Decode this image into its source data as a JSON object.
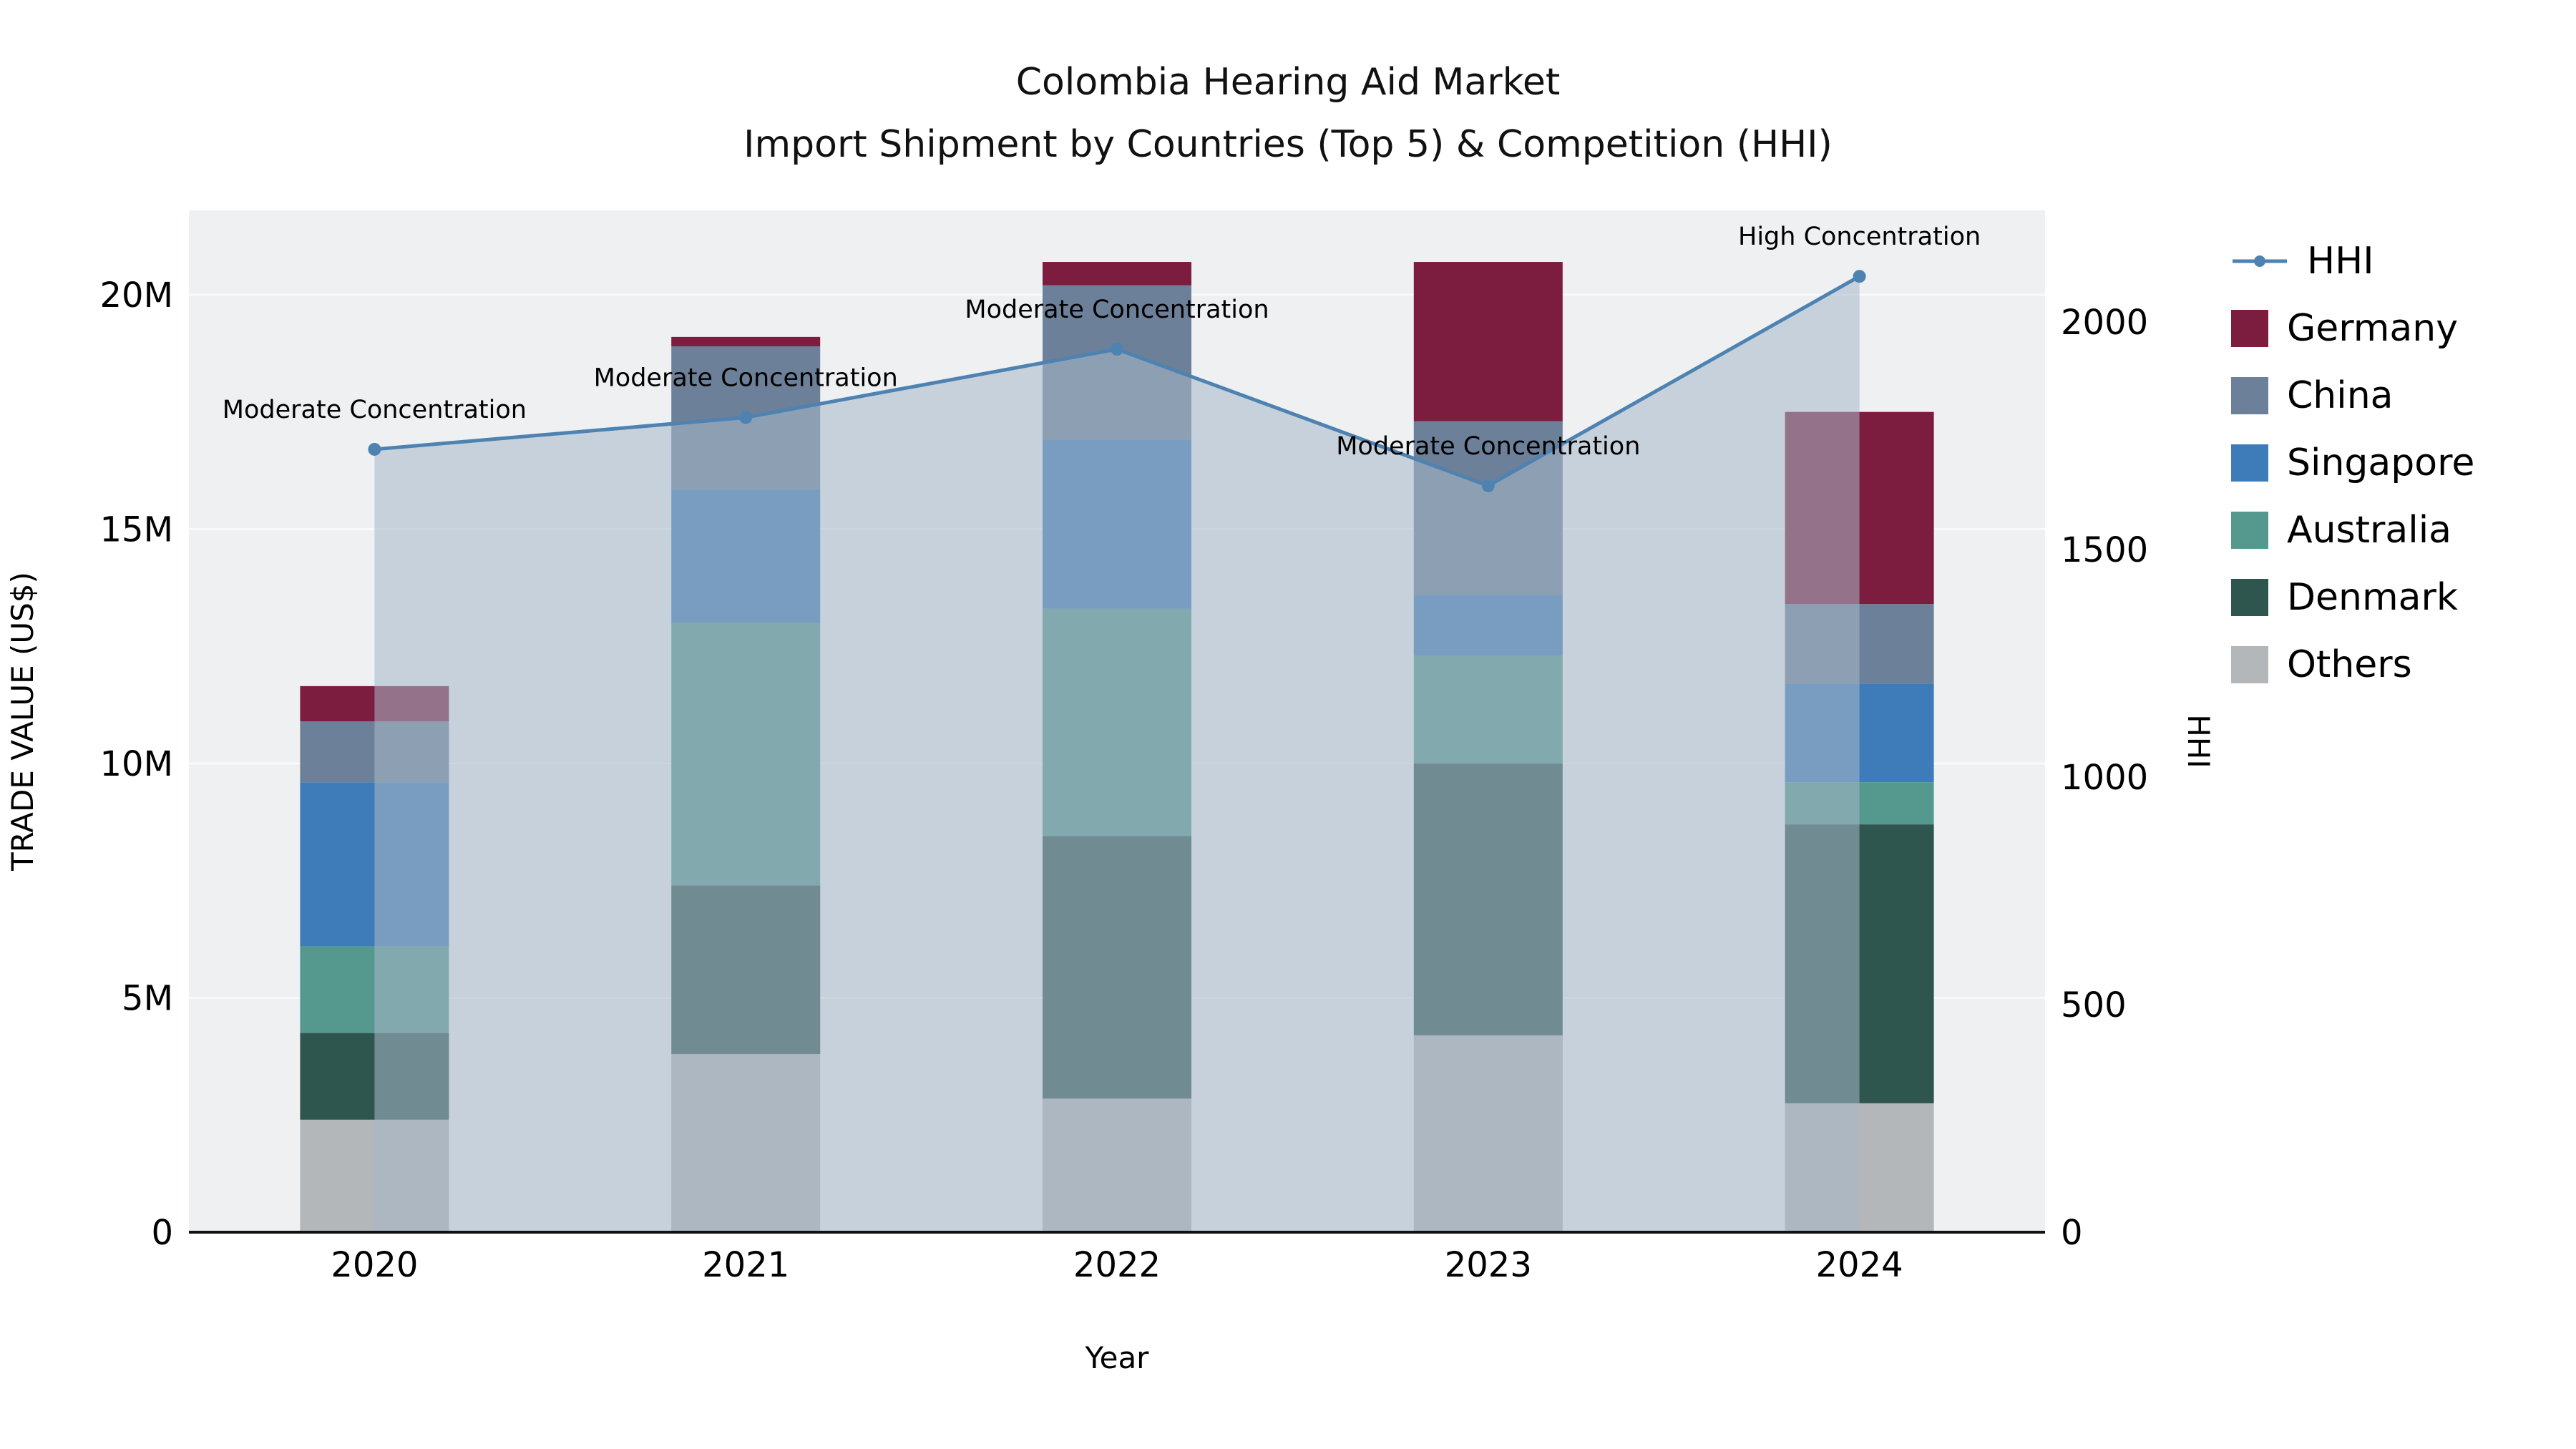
{
  "title_line1": "Colombia Hearing Aid Market",
  "title_line2": "Import Shipment by Countries (Top 5) & Competition (HHI)",
  "chart_data": {
    "type": "bar",
    "subtype": "stacked-bar-with-line-overlay",
    "title": "Colombia Hearing Aid Market Import Shipment by Countries (Top 5) & Competition (HHI)",
    "categories": [
      "2020",
      "2021",
      "2022",
      "2023",
      "2024"
    ],
    "xlabel": "Year",
    "ylabel_left": "TRADE VALUE (US$)",
    "ylabel_right": "HHI",
    "values_unit": "USD millions",
    "grid": "horizontal",
    "legend_position": "right",
    "y_left": {
      "tick_labels": [
        "0",
        "5M",
        "10M",
        "15M",
        "20M"
      ],
      "tick_values": [
        0,
        5,
        10,
        15,
        20
      ],
      "max": 21.8
    },
    "y_right": {
      "tick_labels": [
        "0",
        "500",
        "1000",
        "1500",
        "2000"
      ],
      "tick_values": [
        0,
        500,
        1000,
        1500,
        2000
      ],
      "max": 2245
    },
    "bar_series": [
      {
        "name": "Others",
        "color": "#b4b7ba",
        "values": [
          2.4,
          3.8,
          2.85,
          4.2,
          2.75
        ]
      },
      {
        "name": "Denmark",
        "color": "#2e554e",
        "values": [
          1.85,
          3.6,
          5.6,
          5.8,
          5.95
        ]
      },
      {
        "name": "Australia",
        "color": "#54988e",
        "values": [
          1.85,
          5.6,
          4.85,
          2.3,
          0.9
        ]
      },
      {
        "name": "Singapore",
        "color": "#3e7cb9",
        "values": [
          3.5,
          2.85,
          3.6,
          1.3,
          2.1
        ]
      },
      {
        "name": "China",
        "color": "#6d8099",
        "values": [
          1.3,
          3.05,
          3.3,
          3.7,
          1.7
        ]
      },
      {
        "name": "Germany",
        "color": "#7c1d3f",
        "values": [
          0.75,
          0.2,
          0.5,
          3.4,
          4.1
        ]
      }
    ],
    "line_series": {
      "name": "HHI",
      "color": "#4d82b1",
      "area_fill": "rgba(167,184,201,0.55)",
      "values": [
        1720,
        1790,
        1940,
        1640,
        2100
      ]
    },
    "annotations": [
      {
        "category": "2020",
        "label": "Moderate Concentration"
      },
      {
        "category": "2021",
        "label": "Moderate Concentration"
      },
      {
        "category": "2022",
        "label": "Moderate Concentration"
      },
      {
        "category": "2023",
        "label": "Moderate Concentration"
      },
      {
        "category": "2024",
        "label": "High Concentration"
      }
    ],
    "legend_order": [
      "HHI",
      "Germany",
      "China",
      "Singapore",
      "Australia",
      "Denmark",
      "Others"
    ],
    "colors": {
      "plot_background": "#eef0f2",
      "gridline": "#fafbfc",
      "axis_line": "#111111",
      "text": "#000000"
    }
  }
}
